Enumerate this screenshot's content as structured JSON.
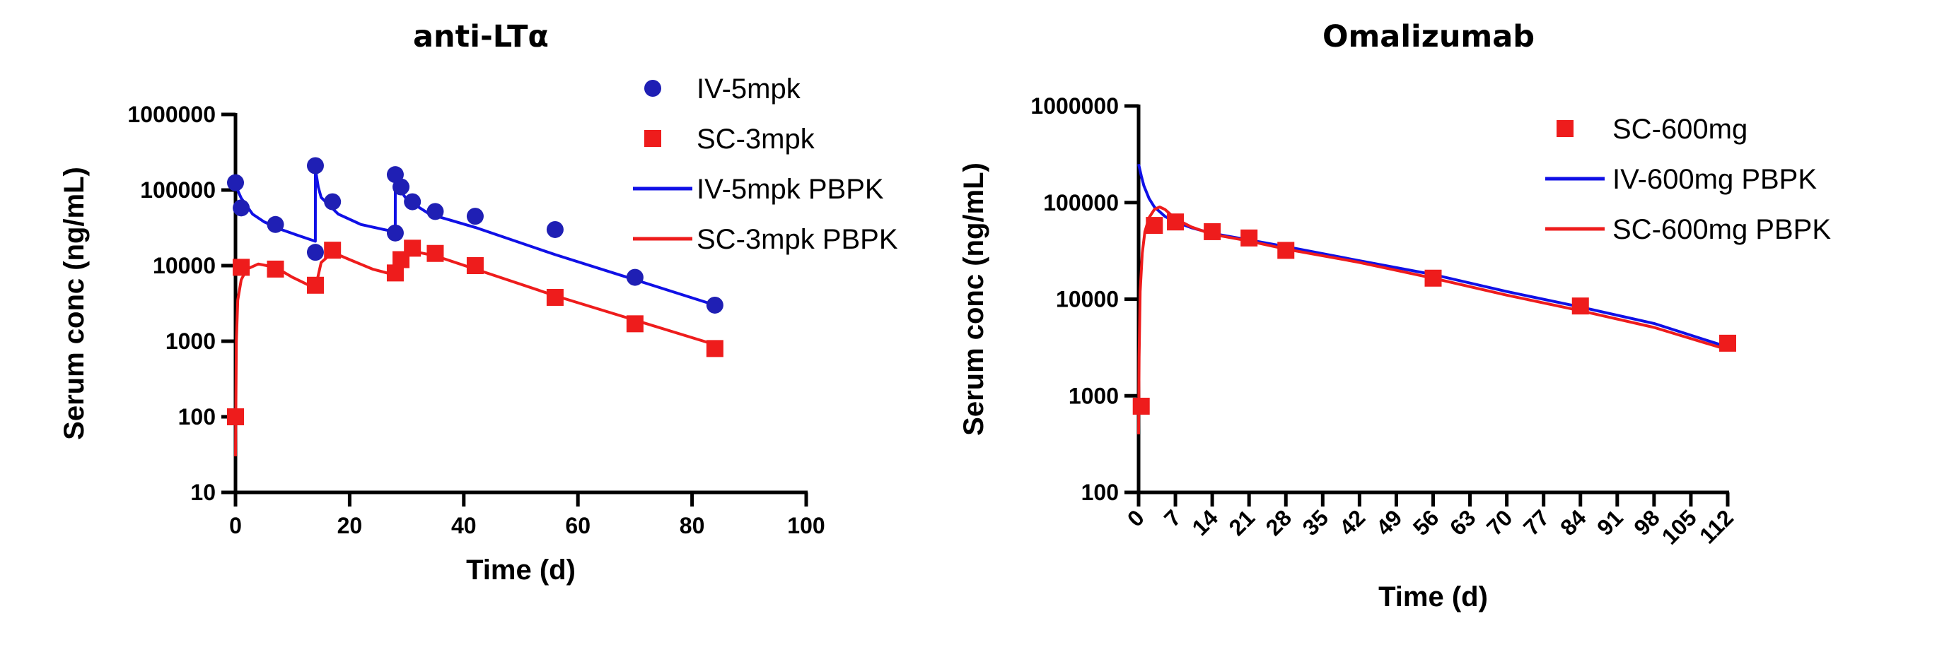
{
  "chart_data": [
    {
      "type": "scatter",
      "title": "anti-LTα",
      "xlabel": "Time (d)",
      "ylabel": "Serum conc (ng/mL)",
      "xlim": [
        0,
        100
      ],
      "ylim": [
        10,
        1000000
      ],
      "yscale": "log",
      "x_ticks": [
        0,
        20,
        40,
        60,
        80,
        100
      ],
      "y_ticks": [
        10,
        100,
        1000,
        10000,
        100000,
        1000000
      ],
      "legend_position": "top-right",
      "series": [
        {
          "name": "IV-5mpk",
          "kind": "points",
          "marker": "circle",
          "color": "#1f1fb4",
          "x": [
            0,
            1,
            7,
            14,
            14,
            17,
            28,
            28,
            29,
            31,
            35,
            42,
            56,
            70,
            84
          ],
          "y": [
            125000,
            58000,
            35000,
            210000,
            15000,
            70000,
            160000,
            27000,
            110000,
            70000,
            52000,
            45000,
            30000,
            7000,
            3000
          ]
        },
        {
          "name": "SC-3mpk",
          "kind": "points",
          "marker": "square",
          "color": "#ee1c1c",
          "x": [
            0,
            1,
            7,
            14,
            17,
            28,
            29,
            31,
            35,
            42,
            56,
            70,
            84
          ],
          "y": [
            100,
            9500,
            9000,
            5500,
            16000,
            8000,
            12000,
            17000,
            14500,
            10000,
            3800,
            1700,
            800
          ]
        },
        {
          "name": "IV-5mpk PBPK",
          "kind": "line",
          "color": "#1010e6",
          "x": [
            0,
            0.5,
            1,
            3,
            5,
            8,
            11,
            13.99,
            14,
            14.5,
            15,
            18,
            22,
            26,
            27.99,
            28,
            28.5,
            30,
            34,
            42,
            56,
            70,
            84
          ],
          "y": [
            128000,
            95000,
            78000,
            48000,
            38000,
            30000,
            25000,
            21000,
            190000,
            110000,
            80000,
            48000,
            35000,
            30000,
            28000,
            170000,
            110000,
            75000,
            48000,
            32000,
            14000,
            6500,
            3000
          ]
        },
        {
          "name": "SC-3mpk PBPK",
          "kind": "line",
          "color": "#ee1c1c",
          "x": [
            0,
            0.15,
            0.4,
            1,
            2,
            4,
            7,
            10,
            13.99,
            15,
            17,
            20,
            24,
            27.99,
            28.5,
            30,
            32,
            35,
            42,
            56,
            70,
            84
          ],
          "y": [
            30,
            1000,
            3500,
            6500,
            9000,
            10500,
            9500,
            7000,
            5000,
            11000,
            15000,
            12000,
            9000,
            7500,
            10000,
            14000,
            15000,
            13500,
            9000,
            4000,
            1900,
            900
          ]
        }
      ]
    },
    {
      "type": "scatter",
      "title": "Omalizumab",
      "xlabel": "Time (d)",
      "ylabel": "Serum conc (ng/mL)",
      "xlim": [
        0,
        112
      ],
      "ylim": [
        100,
        1000000
      ],
      "yscale": "log",
      "x_ticks": [
        0,
        7,
        14,
        21,
        28,
        35,
        42,
        49,
        56,
        63,
        70,
        77,
        84,
        91,
        98,
        105,
        112
      ],
      "y_ticks": [
        100,
        1000,
        10000,
        100000,
        1000000
      ],
      "legend_position": "top-right",
      "series": [
        {
          "name": "SC-600mg",
          "kind": "points",
          "marker": "square",
          "color": "#ee1c1c",
          "x": [
            0.5,
            3,
            7,
            14,
            21,
            28,
            56,
            84,
            112
          ],
          "y": [
            780,
            58000,
            63000,
            50000,
            43000,
            32000,
            16500,
            8500,
            3500
          ]
        },
        {
          "name": "IV-600mg PBPK",
          "kind": "line",
          "color": "#1010e6",
          "x": [
            0,
            0.5,
            1,
            2,
            3,
            5,
            7,
            10,
            14,
            21,
            28,
            42,
            56,
            70,
            84,
            98,
            112
          ],
          "y": [
            250000,
            190000,
            150000,
            110000,
            90000,
            72000,
            63000,
            55000,
            48000,
            41000,
            35000,
            25000,
            18000,
            12000,
            8300,
            5600,
            3200
          ]
        },
        {
          "name": "SC-600mg PBPK",
          "kind": "line",
          "color": "#ee1c1c",
          "x": [
            0,
            0.1,
            0.3,
            0.7,
            1.2,
            2,
            3,
            4,
            5,
            7,
            10,
            14,
            21,
            28,
            42,
            56,
            70,
            84,
            98,
            112
          ],
          "y": [
            400,
            2500,
            12000,
            30000,
            50000,
            70000,
            85000,
            90000,
            85000,
            68000,
            56000,
            47000,
            40000,
            33000,
            24000,
            16500,
            11000,
            7600,
            5100,
            3000
          ]
        }
      ]
    }
  ]
}
